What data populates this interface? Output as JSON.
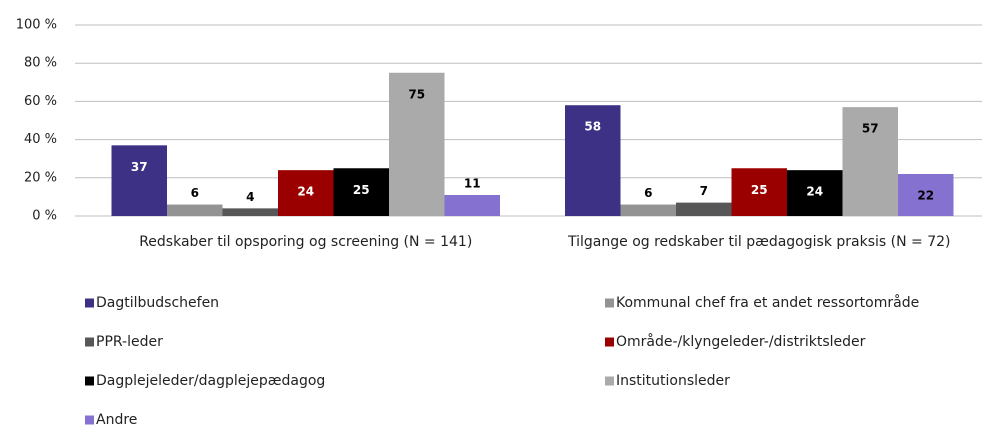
{
  "chart_data": {
    "type": "bar",
    "categories": [
      "Redskaber til opsporing og screening (N = 141)",
      "Tilgange og redskaber til pædagogisk praksis (N = 72)"
    ],
    "series": [
      {
        "name": "Dagtilbudschefen",
        "color": "#3c3185",
        "values": [
          37,
          58
        ]
      },
      {
        "name": "Kommunal chef fra et andet ressortområde",
        "color": "#939393",
        "values": [
          6,
          6
        ]
      },
      {
        "name": "PPR-leder",
        "color": "#575757",
        "values": [
          4,
          7
        ]
      },
      {
        "name": "Område-/klyngeleder-/distriktsleder",
        "color": "#9b0000",
        "values": [
          24,
          25
        ]
      },
      {
        "name": "Dagplejeleder/dagplejepædagog",
        "color": "#000000",
        "values": [
          25,
          24
        ]
      },
      {
        "name": "Institutionsleder",
        "color": "#aaaaaa",
        "values": [
          75,
          57
        ]
      },
      {
        "name": "Andre",
        "color": "#8571cf",
        "values": [
          11,
          22
        ]
      }
    ],
    "ylim": [
      0,
      100
    ],
    "yticks": [
      {
        "value": 0,
        "label": "0 %"
      },
      {
        "value": 20,
        "label": "20 %"
      },
      {
        "value": 40,
        "label": "40 %"
      },
      {
        "value": 60,
        "label": "60 %"
      },
      {
        "value": 80,
        "label": "80 %"
      },
      {
        "value": 100,
        "label": "100 %"
      }
    ],
    "grid": true
  }
}
